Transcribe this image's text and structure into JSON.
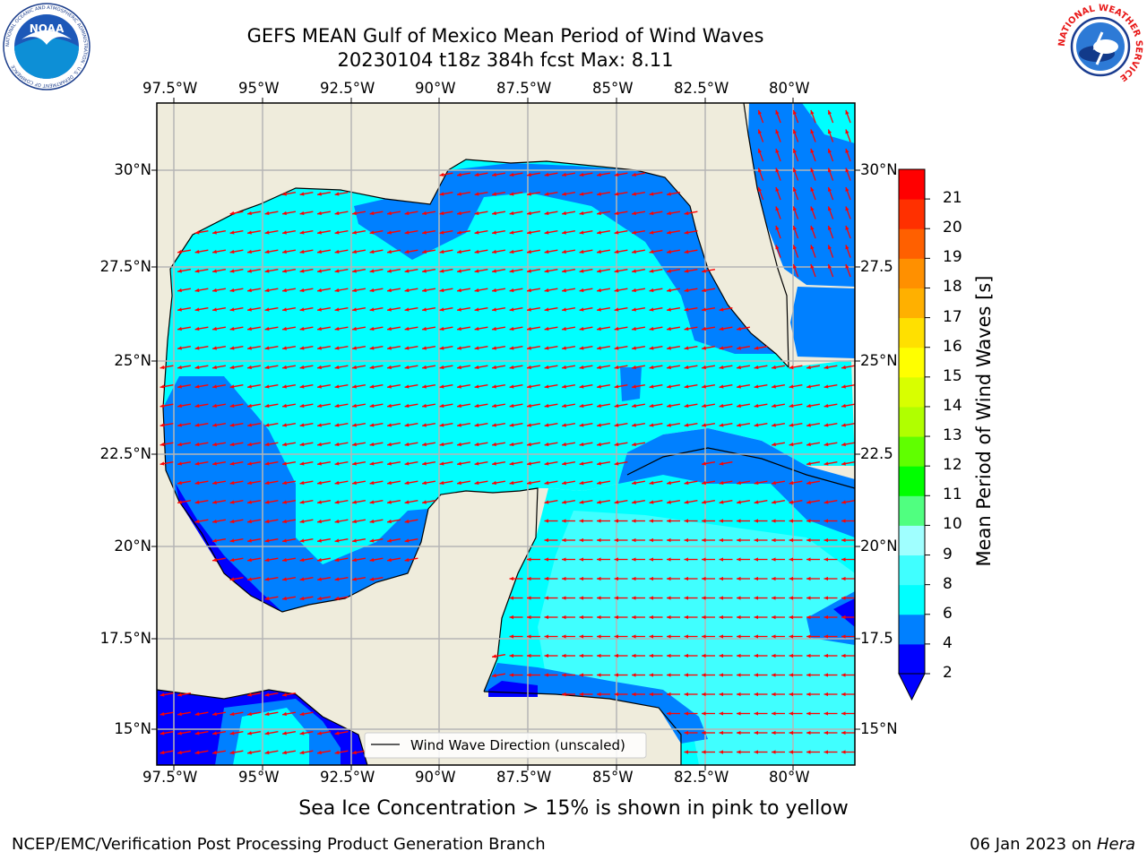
{
  "title": {
    "line1": "GEFS MEAN Gulf of Mexico Mean Period of Wind Waves",
    "line2": "20230104 t18z 384h fcst   Max: 8.11"
  },
  "map": {
    "lon_ticks": [
      "97.5°W",
      "95°W",
      "92.5°W",
      "90°W",
      "87.5°W",
      "85°W",
      "82.5°W",
      "80°W"
    ],
    "lat_ticks_left": [
      "30°N",
      "27.5°N",
      "25°N",
      "22.5°N",
      "20°N",
      "17.5°N",
      "15°N"
    ],
    "lat_ticks_right": [
      "30°N",
      "27.5",
      "25°N",
      "22.5",
      "20°N",
      "17.5",
      "15°N"
    ],
    "legend_text": "Wind Wave Direction (unscaled)",
    "colors": {
      "land": "#efecdc",
      "grid": "#b5b5b5",
      "arrow": "#ff0000",
      "coast": "#000000"
    }
  },
  "colorbar": {
    "label": "Mean Period of Wind Waves [s]",
    "ticks": [
      "2",
      "4",
      "6",
      "8",
      "9",
      "10",
      "11",
      "12",
      "13",
      "14",
      "15",
      "16",
      "17",
      "18",
      "19",
      "20",
      "21"
    ],
    "colors": [
      "#0000ff",
      "#0080ff",
      "#00ffff",
      "#40ffff",
      "#a0ffff",
      "#50ff80",
      "#00ff00",
      "#60ff00",
      "#b0ff00",
      "#d8ff00",
      "#ffff00",
      "#ffe000",
      "#ffb000",
      "#ff9000",
      "#ff6000",
      "#ff3000",
      "#ff0000"
    ]
  },
  "caption": "Sea Ice Concentration > 15% is shown in pink to yellow",
  "footer": {
    "left": "NCEP/EMC/Verification Post Processing Product Generation Branch",
    "date": "06 Jan 2023 on ",
    "machine": "Hera"
  },
  "logos": {
    "noaa_text": "NOAA",
    "noaa_ring": "NATIONAL OCEANIC AND ATMOSPHERIC ADMINISTRATION · U.S. DEPARTMENT OF COMMERCE",
    "nws_ring": "NATIONAL WEATHER SERVICE"
  }
}
